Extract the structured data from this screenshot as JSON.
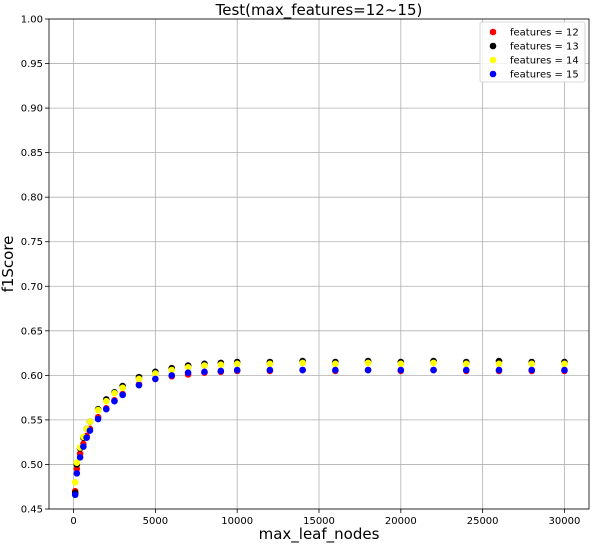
{
  "chart_data": {
    "type": "scatter",
    "title": "Test(max_features=12~15)",
    "xlabel": "max_leaf_nodes",
    "ylabel": "f1Score",
    "xlim": [
      -1500,
      31500
    ],
    "ylim": [
      0.45,
      1.0
    ],
    "xticks": [
      0,
      5000,
      10000,
      15000,
      20000,
      25000,
      30000
    ],
    "yticks": [
      0.45,
      0.5,
      0.55,
      0.6,
      0.65,
      0.7,
      0.75,
      0.8,
      0.85,
      0.9,
      0.95,
      1.0
    ],
    "grid": true,
    "legend_position": "top-right",
    "series": [
      {
        "name": "features = 12",
        "color": "#ff0000",
        "x": [
          100,
          200,
          400,
          600,
          800,
          1000,
          1500,
          2000,
          2500,
          3000,
          4000,
          5000,
          6000,
          7000,
          8000,
          9000,
          10000,
          12000,
          14000,
          16000,
          18000,
          20000,
          22000,
          24000,
          26000,
          28000,
          30000
        ],
        "y": [
          0.47,
          0.495,
          0.512,
          0.523,
          0.532,
          0.54,
          0.553,
          0.563,
          0.572,
          0.579,
          0.59,
          0.596,
          0.599,
          0.601,
          0.603,
          0.604,
          0.605,
          0.605,
          0.606,
          0.605,
          0.606,
          0.605,
          0.606,
          0.605,
          0.605,
          0.605,
          0.605
        ]
      },
      {
        "name": "features = 13",
        "color": "#000000",
        "x": [
          100,
          200,
          400,
          600,
          800,
          1000,
          1500,
          2000,
          2500,
          3000,
          4000,
          5000,
          6000,
          7000,
          8000,
          9000,
          10000,
          12000,
          14000,
          16000,
          18000,
          20000,
          22000,
          24000,
          26000,
          28000,
          30000
        ],
        "y": [
          0.468,
          0.5,
          0.518,
          0.53,
          0.54,
          0.548,
          0.562,
          0.573,
          0.581,
          0.588,
          0.598,
          0.604,
          0.608,
          0.611,
          0.613,
          0.614,
          0.615,
          0.615,
          0.616,
          0.615,
          0.616,
          0.615,
          0.616,
          0.615,
          0.616,
          0.615,
          0.615
        ]
      },
      {
        "name": "features = 14",
        "color": "#ffff00",
        "x": [
          100,
          200,
          400,
          600,
          800,
          1000,
          1500,
          2000,
          2500,
          3000,
          4000,
          5000,
          6000,
          7000,
          8000,
          9000,
          10000,
          12000,
          14000,
          16000,
          18000,
          20000,
          22000,
          24000,
          26000,
          28000,
          30000
        ],
        "y": [
          0.48,
          0.502,
          0.519,
          0.531,
          0.54,
          0.548,
          0.561,
          0.571,
          0.58,
          0.586,
          0.596,
          0.602,
          0.606,
          0.609,
          0.611,
          0.612,
          0.613,
          0.613,
          0.614,
          0.613,
          0.614,
          0.613,
          0.614,
          0.613,
          0.613,
          0.613,
          0.613
        ]
      },
      {
        "name": "features = 15",
        "color": "#0000ff",
        "x": [
          100,
          200,
          400,
          600,
          800,
          1000,
          1500,
          2000,
          2500,
          3000,
          4000,
          5000,
          6000,
          7000,
          8000,
          9000,
          10000,
          12000,
          14000,
          16000,
          18000,
          20000,
          22000,
          24000,
          26000,
          28000,
          30000
        ],
        "y": [
          0.466,
          0.49,
          0.508,
          0.52,
          0.53,
          0.538,
          0.551,
          0.562,
          0.571,
          0.578,
          0.589,
          0.596,
          0.6,
          0.603,
          0.604,
          0.605,
          0.606,
          0.606,
          0.606,
          0.606,
          0.606,
          0.606,
          0.606,
          0.606,
          0.606,
          0.606,
          0.606
        ]
      }
    ]
  }
}
